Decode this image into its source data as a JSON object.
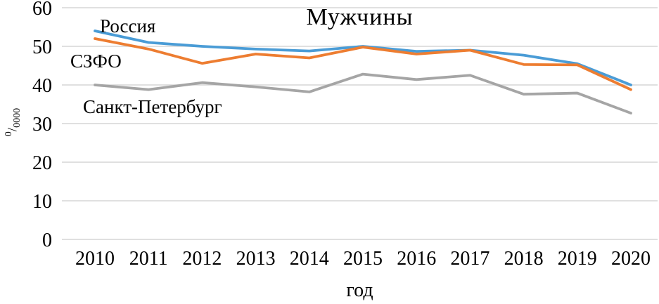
{
  "chart_data": {
    "type": "line",
    "title": "Мужчины",
    "xlabel": "год",
    "ylabel": {
      "numerator": "0",
      "denominator": "0000"
    },
    "x": [
      2010,
      2011,
      2012,
      2013,
      2014,
      2015,
      2016,
      2017,
      2018,
      2019,
      2020
    ],
    "yticks": [
      0,
      10,
      20,
      30,
      40,
      50,
      60
    ],
    "ylim": [
      0,
      60
    ],
    "grid": true,
    "grid_color": "#D6D6D6",
    "legend_position": "inline-labels",
    "series": [
      {
        "name": "Россия",
        "color": "#4A9CD6",
        "values": [
          54,
          51,
          50,
          49.3,
          48.8,
          50,
          48.7,
          49,
          47.7,
          45.5,
          40
        ]
      },
      {
        "name": "СЗФО",
        "color": "#ED7D31",
        "values": [
          52,
          49.3,
          45.6,
          48,
          47,
          49.8,
          48,
          49,
          45.3,
          45.2,
          38.8
        ]
      },
      {
        "name": "Санкт-Петербург",
        "color": "#A5A5A5",
        "values": [
          40,
          38.8,
          40.6,
          39.5,
          38.2,
          42.8,
          41.4,
          42.5,
          37.6,
          37.9,
          32.7
        ]
      }
    ]
  }
}
